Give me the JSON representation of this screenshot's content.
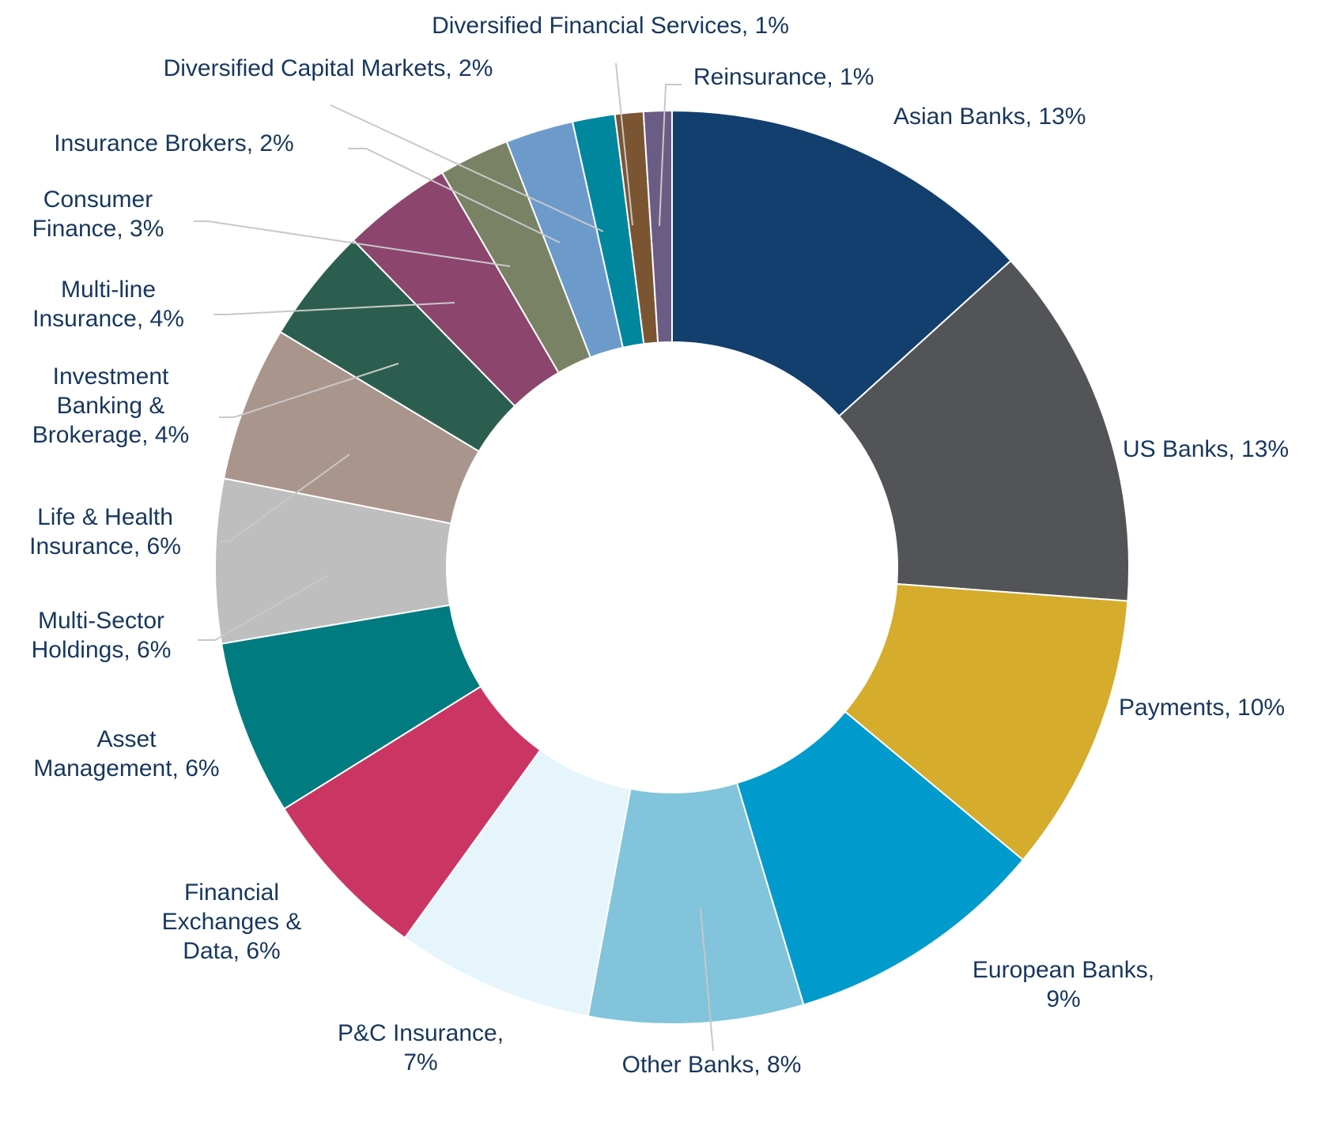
{
  "chart_data": {
    "type": "pie",
    "variant": "donut",
    "title": "",
    "value_unit": "%",
    "slices": [
      {
        "name": "Asian Banks",
        "value": 13.3,
        "label": [
          "Asian Banks, 13%"
        ],
        "color": "#123f6e"
      },
      {
        "name": "US Banks",
        "value": 12.9,
        "label": [
          "US Banks, 13%"
        ],
        "color": "#525457"
      },
      {
        "name": "Payments",
        "value": 9.9,
        "label": [
          "Payments, 10%"
        ],
        "color": "#d6ac2c"
      },
      {
        "name": "European Banks",
        "value": 9.3,
        "label": [
          "European Banks,",
          "9%"
        ],
        "color": "#009bcd"
      },
      {
        "name": "Other Banks",
        "value": 7.6,
        "label": [
          "Other Banks, 8%"
        ],
        "color": "#81c4dc"
      },
      {
        "name": "P&C Insurance",
        "value": 7.0,
        "label": [
          "P&C Insurance,",
          "7%"
        ],
        "color": "#e6f4fc"
      },
      {
        "name": "Financial Exchanges & Data",
        "value": 6.2,
        "label": [
          "Financial",
          "Exchanges &",
          "Data, 6%"
        ],
        "color": "#cb3564"
      },
      {
        "name": "Asset Management",
        "value": 6.2,
        "label": [
          "Asset",
          "Management, 6%"
        ],
        "color": "#007c80"
      },
      {
        "name": "Multi-Sector Holdings",
        "value": 5.8,
        "label": [
          "Multi-Sector",
          "Holdings, 6%"
        ],
        "color": "#bebebe"
      },
      {
        "name": "Life & Health Insurance",
        "value": 5.5,
        "label": [
          "Life & Health",
          "Insurance, 6%"
        ],
        "color": "#aa958d"
      },
      {
        "name": "Investment Banking & Brokerage",
        "value": 4.1,
        "label": [
          "Investment",
          "Banking &",
          "Brokerage, 4%"
        ],
        "color": "#2c5e4f"
      },
      {
        "name": "Multi-line Insurance",
        "value": 3.9,
        "label": [
          "Multi-line",
          "Insurance, 4%"
        ],
        "color": "#8c466e"
      },
      {
        "name": "Consumer Finance",
        "value": 2.5,
        "label": [
          "Consumer",
          "Finance, 3%"
        ],
        "color": "#798265"
      },
      {
        "name": "Insurance Brokers",
        "value": 2.4,
        "label": [
          "Insurance Brokers, 2%"
        ],
        "color": "#6c9bcb"
      },
      {
        "name": "Diversified Capital Markets",
        "value": 1.5,
        "label": [
          "Diversified  Capital Markets, 2%"
        ],
        "color": "#00879e"
      },
      {
        "name": "Diversified Financial Services",
        "value": 1.0,
        "label": [
          "Diversified  Financial Services, 1%"
        ],
        "color": "#7b5532"
      },
      {
        "name": "Reinsurance",
        "value": 1.0,
        "label": [
          "Reinsurance, 1%"
        ],
        "color": "#6a5c85"
      }
    ]
  }
}
